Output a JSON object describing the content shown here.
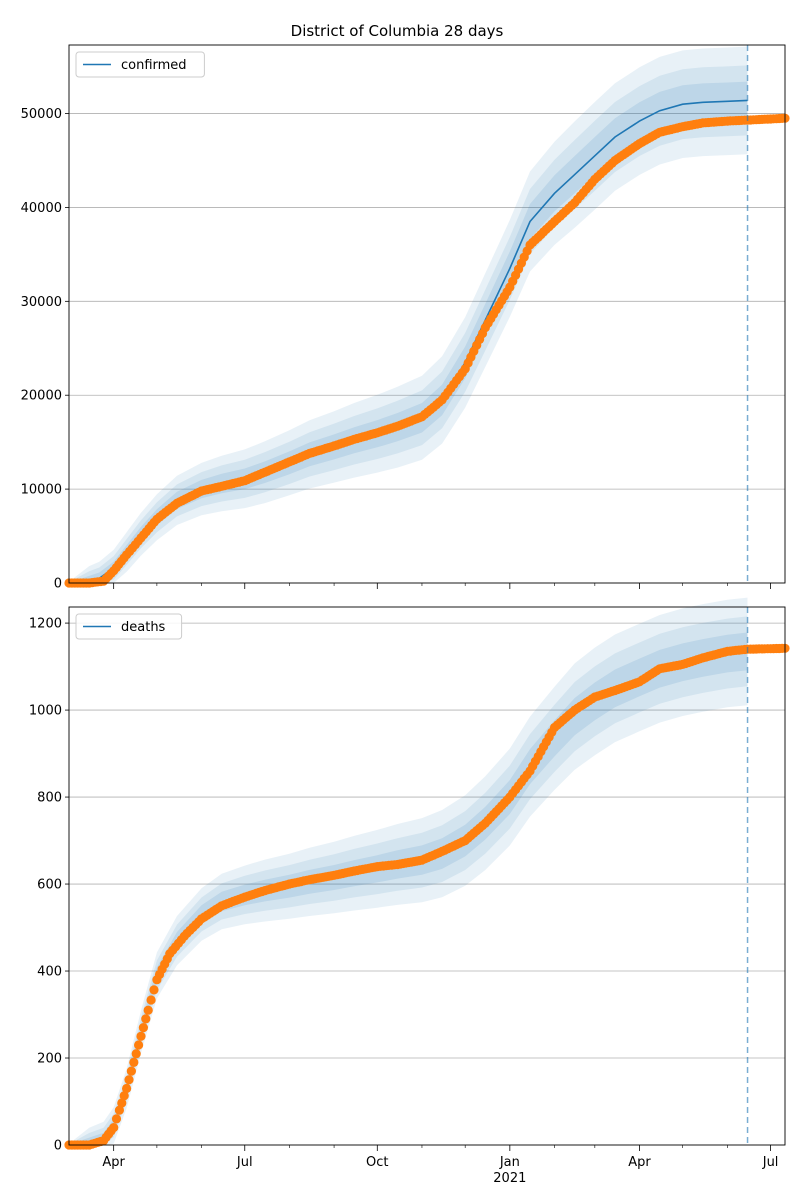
{
  "figure": {
    "title": "District of Columbia 28 days"
  },
  "colors": {
    "model": "#1f77b4",
    "observed": "#ff7f0e",
    "grid": "#b0b0b0",
    "band": "#1f77b4"
  },
  "chart_data": [
    {
      "type": "line",
      "title": "District of Columbia 28 days",
      "xlabel": "",
      "ylabel": "",
      "legend": {
        "labels": [
          "confirmed"
        ],
        "placement": "top-left"
      },
      "xlim": [
        "2020-03-01",
        "2021-07-11"
      ],
      "ylim": [
        0,
        57300
      ],
      "yticks": [
        0,
        10000,
        20000,
        30000,
        40000,
        50000
      ],
      "grid": "horizontal",
      "forecast_start": "2021-06-15",
      "series": [
        {
          "name": "confirmed",
          "kind": "model-line",
          "x": [
            "2020-03-01",
            "2020-03-15",
            "2020-03-22",
            "2020-04-01",
            "2020-04-10",
            "2020-04-20",
            "2020-05-01",
            "2020-05-15",
            "2020-06-01",
            "2020-06-15",
            "2020-07-01",
            "2020-07-15",
            "2020-08-01",
            "2020-08-15",
            "2020-09-01",
            "2020-09-15",
            "2020-10-01",
            "2020-10-15",
            "2020-11-01",
            "2020-11-15",
            "2020-12-01",
            "2020-12-15",
            "2021-01-01",
            "2021-01-15",
            "2021-02-01",
            "2021-02-15",
            "2021-03-01",
            "2021-03-15",
            "2021-04-01",
            "2021-04-15",
            "2021-05-01",
            "2021-05-15",
            "2021-06-01",
            "2021-06-15"
          ],
          "y": [
            0,
            200,
            500,
            1600,
            3300,
            5200,
            7000,
            8800,
            10000,
            10600,
            11100,
            11800,
            12800,
            13700,
            14500,
            15200,
            15900,
            16600,
            17600,
            19500,
            23500,
            28000,
            33500,
            38500,
            41500,
            43500,
            45500,
            47500,
            49200,
            50300,
            51000,
            51200,
            51300,
            51400
          ]
        },
        {
          "name": "",
          "kind": "observed-points",
          "x": [
            "2020-03-01",
            "2020-03-15",
            "2020-03-25",
            "2020-04-01",
            "2020-04-10",
            "2020-04-20",
            "2020-05-01",
            "2020-05-15",
            "2020-06-01",
            "2020-06-15",
            "2020-07-01",
            "2020-07-15",
            "2020-08-01",
            "2020-08-15",
            "2020-09-01",
            "2020-09-15",
            "2020-10-01",
            "2020-10-15",
            "2020-11-01",
            "2020-11-15",
            "2020-12-01",
            "2020-12-15",
            "2021-01-01",
            "2021-01-15",
            "2021-02-01",
            "2021-02-15",
            "2021-03-01",
            "2021-03-15",
            "2021-04-01",
            "2021-04-15",
            "2021-05-01",
            "2021-05-15",
            "2021-06-01",
            "2021-06-15",
            "2021-07-11"
          ],
          "y": [
            0,
            0,
            200,
            1300,
            3000,
            4800,
            6800,
            8500,
            9800,
            10300,
            10900,
            11800,
            12900,
            13800,
            14600,
            15300,
            16000,
            16700,
            17700,
            19500,
            22800,
            27200,
            31500,
            36000,
            38500,
            40500,
            43000,
            45000,
            46800,
            48000,
            48600,
            49000,
            49200,
            49300,
            49500
          ]
        }
      ]
    },
    {
      "type": "line",
      "title": "",
      "xlabel": "",
      "ylabel": "",
      "legend": {
        "labels": [
          "deaths"
        ],
        "placement": "top-left"
      },
      "xlim": [
        "2020-03-01",
        "2021-07-11"
      ],
      "ylim": [
        0,
        1237
      ],
      "yticks": [
        0,
        200,
        400,
        600,
        800,
        1000,
        1200
      ],
      "xticks": [
        "Apr",
        "Jul",
        "Oct",
        "Jan",
        "Apr",
        "Jul"
      ],
      "xticks_year": "2021",
      "grid": "horizontal",
      "forecast_start": "2021-06-15",
      "series": [
        {
          "name": "deaths",
          "kind": "model-band-center",
          "x": [
            "2020-03-01",
            "2020-03-15",
            "2020-03-25",
            "2020-04-01",
            "2020-04-10",
            "2020-04-20",
            "2020-05-01",
            "2020-05-15",
            "2020-06-01",
            "2020-06-15",
            "2020-07-01",
            "2020-07-15",
            "2020-08-01",
            "2020-08-15",
            "2020-09-01",
            "2020-09-15",
            "2020-10-01",
            "2020-10-15",
            "2020-11-01",
            "2020-11-15",
            "2020-12-01",
            "2020-12-15",
            "2021-01-01",
            "2021-01-15",
            "2021-02-01",
            "2021-02-15",
            "2021-03-01",
            "2021-03-15",
            "2021-04-01",
            "2021-04-15",
            "2021-05-01",
            "2021-05-15",
            "2021-06-01",
            "2021-06-15"
          ],
          "y": [
            0,
            5,
            15,
            45,
            130,
            260,
            390,
            470,
            530,
            560,
            575,
            585,
            595,
            605,
            615,
            625,
            635,
            645,
            655,
            670,
            700,
            740,
            800,
            870,
            935,
            985,
            1020,
            1050,
            1075,
            1095,
            1110,
            1120,
            1130,
            1135
          ]
        },
        {
          "name": "",
          "kind": "observed-points",
          "x": [
            "2020-03-01",
            "2020-03-15",
            "2020-03-25",
            "2020-04-01",
            "2020-04-05",
            "2020-04-10",
            "2020-04-15",
            "2020-04-20",
            "2020-04-25",
            "2020-05-01",
            "2020-05-10",
            "2020-05-20",
            "2020-06-01",
            "2020-06-15",
            "2020-07-01",
            "2020-07-15",
            "2020-08-01",
            "2020-08-15",
            "2020-09-01",
            "2020-09-15",
            "2020-10-01",
            "2020-10-15",
            "2020-11-01",
            "2020-11-15",
            "2020-12-01",
            "2020-12-15",
            "2021-01-01",
            "2021-01-15",
            "2021-02-01",
            "2021-02-15",
            "2021-03-01",
            "2021-03-15",
            "2021-04-01",
            "2021-04-15",
            "2021-05-01",
            "2021-05-15",
            "2021-06-01",
            "2021-06-15",
            "2021-07-11"
          ],
          "y": [
            0,
            0,
            10,
            40,
            80,
            130,
            190,
            250,
            310,
            380,
            440,
            480,
            520,
            550,
            570,
            585,
            600,
            610,
            620,
            630,
            640,
            645,
            655,
            675,
            700,
            740,
            800,
            860,
            960,
            1000,
            1030,
            1045,
            1065,
            1095,
            1105,
            1120,
            1135,
            1140,
            1142
          ]
        }
      ]
    }
  ]
}
